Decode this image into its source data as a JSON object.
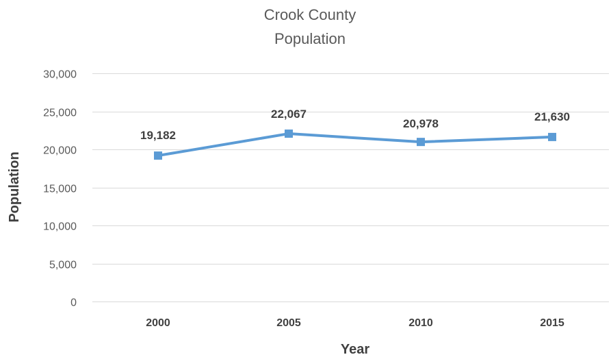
{
  "chart_data": {
    "type": "line",
    "title_lines": [
      "Crook County",
      "Population"
    ],
    "xlabel": "Year",
    "ylabel": "Population",
    "categories": [
      "2000",
      "2005",
      "2010",
      "2015"
    ],
    "series": [
      {
        "values": [
          19182,
          22067,
          20978,
          21630
        ],
        "data_labels": [
          "19,182",
          "22,067",
          "20,978",
          "21,630"
        ],
        "color": "#5b9bd5",
        "marker": "square"
      }
    ],
    "ylim": [
      0,
      30000
    ],
    "yticks": [
      0,
      5000,
      10000,
      15000,
      20000,
      25000,
      30000
    ],
    "ytick_labels": [
      "0",
      "5,000",
      "10,000",
      "15,000",
      "20,000",
      "25,000",
      "30,000"
    ],
    "grid": "horizontal",
    "legend": "none"
  }
}
